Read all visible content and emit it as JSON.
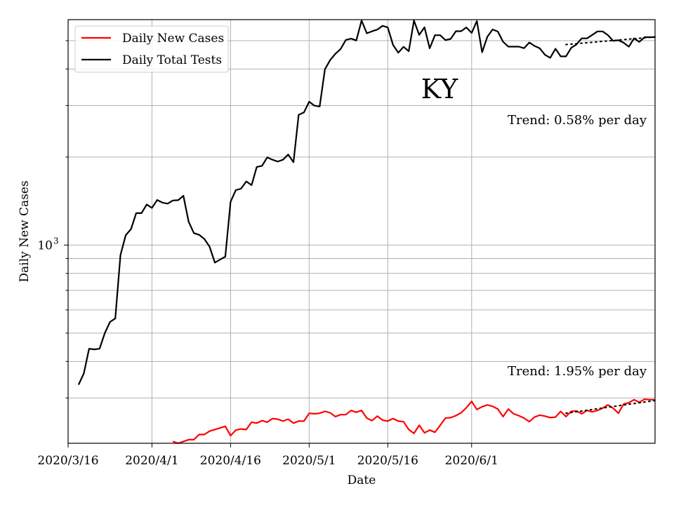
{
  "chart_data": {
    "type": "line",
    "title": "",
    "xlabel": "Date",
    "ylabel": "Daily New Cases",
    "annotation_state": "KY",
    "x_ticks": [
      "2020/3/16",
      "2020/4/1",
      "2020/4/16",
      "2020/5/1",
      "2020/5/16",
      "2020/6/1"
    ],
    "y_tick_label": "10",
    "y_tick_exponent": "3",
    "y_scale": "log",
    "ylim": [
      210,
      5900
    ],
    "xlim": [
      "2020-03-16",
      "2020-07-06"
    ],
    "grid": true,
    "legend_position": "upper-left",
    "series": [
      {
        "name": "Daily New Cases",
        "color": "#ff0000",
        "trend_label": "Trend: 1.95% per day",
        "points": [
          [
            "2020-04-05",
            213
          ],
          [
            "2020-04-06",
            210
          ],
          [
            "2020-04-07",
            213
          ],
          [
            "2020-04-08",
            216
          ],
          [
            "2020-04-09",
            216
          ],
          [
            "2020-04-10",
            225
          ],
          [
            "2020-04-11",
            225
          ],
          [
            "2020-04-12",
            231
          ],
          [
            "2020-04-13",
            234
          ],
          [
            "2020-04-14",
            237
          ],
          [
            "2020-04-15",
            240
          ],
          [
            "2020-04-16",
            223
          ],
          [
            "2020-04-17",
            233
          ],
          [
            "2020-04-18",
            235
          ],
          [
            "2020-04-19",
            234
          ],
          [
            "2020-04-20",
            248
          ],
          [
            "2020-04-21",
            246
          ],
          [
            "2020-04-22",
            251
          ],
          [
            "2020-04-23",
            248
          ],
          [
            "2020-04-24",
            255
          ],
          [
            "2020-04-25",
            254
          ],
          [
            "2020-04-26",
            250
          ],
          [
            "2020-04-27",
            254
          ],
          [
            "2020-04-28",
            246
          ],
          [
            "2020-04-29",
            250
          ],
          [
            "2020-04-30",
            250
          ],
          [
            "2020-05-01",
            266
          ],
          [
            "2020-05-02",
            265
          ],
          [
            "2020-05-03",
            266
          ],
          [
            "2020-05-04",
            270
          ],
          [
            "2020-05-05",
            267
          ],
          [
            "2020-05-06",
            259
          ],
          [
            "2020-05-07",
            263
          ],
          [
            "2020-05-08",
            263
          ],
          [
            "2020-05-09",
            272
          ],
          [
            "2020-05-10",
            268
          ],
          [
            "2020-05-11",
            272
          ],
          [
            "2020-05-12",
            256
          ],
          [
            "2020-05-13",
            251
          ],
          [
            "2020-05-14",
            260
          ],
          [
            "2020-05-15",
            252
          ],
          [
            "2020-05-16",
            250
          ],
          [
            "2020-05-17",
            255
          ],
          [
            "2020-05-18",
            250
          ],
          [
            "2020-05-19",
            249
          ],
          [
            "2020-05-20",
            234
          ],
          [
            "2020-05-21",
            227
          ],
          [
            "2020-05-22",
            242
          ],
          [
            "2020-05-23",
            228
          ],
          [
            "2020-05-24",
            233
          ],
          [
            "2020-05-25",
            229
          ],
          [
            "2020-05-26",
            242
          ],
          [
            "2020-05-27",
            256
          ],
          [
            "2020-05-28",
            257
          ],
          [
            "2020-05-29",
            261
          ],
          [
            "2020-05-30",
            267
          ],
          [
            "2020-05-31",
            278
          ],
          [
            "2020-06-01",
            292
          ],
          [
            "2020-06-02",
            274
          ],
          [
            "2020-06-03",
            280
          ],
          [
            "2020-06-04",
            284
          ],
          [
            "2020-06-05",
            281
          ],
          [
            "2020-06-06",
            275
          ],
          [
            "2020-06-07",
            259
          ],
          [
            "2020-06-08",
            275
          ],
          [
            "2020-06-09",
            265
          ],
          [
            "2020-06-10",
            261
          ],
          [
            "2020-06-11",
            256
          ],
          [
            "2020-06-12",
            249
          ],
          [
            "2020-06-13",
            258
          ],
          [
            "2020-06-14",
            262
          ],
          [
            "2020-06-15",
            260
          ],
          [
            "2020-06-16",
            257
          ],
          [
            "2020-06-17",
            258
          ],
          [
            "2020-06-18",
            270
          ],
          [
            "2020-06-19",
            259
          ],
          [
            "2020-06-20",
            270
          ],
          [
            "2020-06-21",
            271
          ],
          [
            "2020-06-22",
            265
          ],
          [
            "2020-06-23",
            272
          ],
          [
            "2020-06-24",
            269
          ],
          [
            "2020-06-25",
            272
          ],
          [
            "2020-06-26",
            277
          ],
          [
            "2020-06-27",
            284
          ],
          [
            "2020-06-28",
            277
          ],
          [
            "2020-06-29",
            266
          ],
          [
            "2020-06-30",
            286
          ],
          [
            "2020-07-01",
            289
          ],
          [
            "2020-07-02",
            296
          ],
          [
            "2020-07-03",
            290
          ],
          [
            "2020-07-04",
            297
          ],
          [
            "2020-07-05",
            296
          ],
          [
            "2020-07-06",
            296
          ]
        ],
        "trend_line": [
          [
            "2020-06-19",
            266
          ],
          [
            "2020-07-06",
            294
          ]
        ]
      },
      {
        "name": "Daily Total Tests",
        "color": "#000000",
        "trend_label": "Trend: 0.58% per day",
        "points": [
          [
            "2020-03-18",
            333
          ],
          [
            "2020-03-19",
            364
          ],
          [
            "2020-03-20",
            442
          ],
          [
            "2020-03-21",
            440
          ],
          [
            "2020-03-22",
            442
          ],
          [
            "2020-03-23",
            500
          ],
          [
            "2020-03-24",
            546
          ],
          [
            "2020-03-25",
            561
          ],
          [
            "2020-03-26",
            925
          ],
          [
            "2020-03-27",
            1081
          ],
          [
            "2020-03-28",
            1134
          ],
          [
            "2020-03-29",
            1286
          ],
          [
            "2020-03-30",
            1286
          ],
          [
            "2020-03-31",
            1376
          ],
          [
            "2020-04-01",
            1340
          ],
          [
            "2020-04-02",
            1426
          ],
          [
            "2020-04-03",
            1397
          ],
          [
            "2020-04-04",
            1386
          ],
          [
            "2020-04-05",
            1421
          ],
          [
            "2020-04-06",
            1424
          ],
          [
            "2020-04-07",
            1474
          ],
          [
            "2020-04-08",
            1202
          ],
          [
            "2020-04-09",
            1099
          ],
          [
            "2020-04-10",
            1084
          ],
          [
            "2020-04-11",
            1049
          ],
          [
            "2020-04-12",
            988
          ],
          [
            "2020-04-13",
            871
          ],
          [
            "2020-04-14",
            892
          ],
          [
            "2020-04-15",
            913
          ],
          [
            "2020-04-16",
            1406
          ],
          [
            "2020-04-17",
            1542
          ],
          [
            "2020-04-18",
            1559
          ],
          [
            "2020-04-19",
            1651
          ],
          [
            "2020-04-20",
            1603
          ],
          [
            "2020-04-21",
            1849
          ],
          [
            "2020-04-22",
            1866
          ],
          [
            "2020-04-23",
            1994
          ],
          [
            "2020-04-24",
            1958
          ],
          [
            "2020-04-25",
            1929
          ],
          [
            "2020-04-26",
            1958
          ],
          [
            "2020-04-27",
            2040
          ],
          [
            "2020-04-28",
            1919
          ],
          [
            "2020-04-29",
            2789
          ],
          [
            "2020-04-30",
            2841
          ],
          [
            "2020-05-01",
            3092
          ],
          [
            "2020-05-02",
            2998
          ],
          [
            "2020-05-03",
            2976
          ],
          [
            "2020-05-04",
            3990
          ],
          [
            "2020-05-05",
            4291
          ],
          [
            "2020-05-06",
            4508
          ],
          [
            "2020-05-07",
            4680
          ],
          [
            "2020-05-08",
            5031
          ],
          [
            "2020-05-09",
            5080
          ],
          [
            "2020-05-10",
            5007
          ],
          [
            "2020-05-11",
            5859
          ],
          [
            "2020-05-12",
            5299
          ],
          [
            "2020-05-13",
            5383
          ],
          [
            "2020-05-14",
            5455
          ],
          [
            "2020-05-15",
            5621
          ],
          [
            "2020-05-16",
            5550
          ],
          [
            "2020-05-17",
            4835
          ],
          [
            "2020-05-18",
            4546
          ],
          [
            "2020-05-19",
            4764
          ],
          [
            "2020-05-20",
            4601
          ],
          [
            "2020-05-21",
            5859
          ],
          [
            "2020-05-22",
            5231
          ],
          [
            "2020-05-23",
            5555
          ],
          [
            "2020-05-24",
            4707
          ],
          [
            "2020-05-25",
            5218
          ],
          [
            "2020-05-26",
            5218
          ],
          [
            "2020-05-27",
            5021
          ],
          [
            "2020-05-28",
            5070
          ],
          [
            "2020-05-29",
            5385
          ],
          [
            "2020-05-30",
            5385
          ],
          [
            "2020-05-31",
            5548
          ],
          [
            "2020-06-01",
            5313
          ],
          [
            "2020-06-02",
            5839
          ],
          [
            "2020-06-03",
            4563
          ],
          [
            "2020-06-04",
            5154
          ],
          [
            "2020-06-05",
            5461
          ],
          [
            "2020-06-06",
            5371
          ],
          [
            "2020-06-07",
            4958
          ],
          [
            "2020-06-08",
            4769
          ],
          [
            "2020-06-09",
            4769
          ],
          [
            "2020-06-10",
            4769
          ],
          [
            "2020-06-11",
            4712
          ],
          [
            "2020-06-12",
            4927
          ],
          [
            "2020-06-13",
            4797
          ],
          [
            "2020-06-14",
            4706
          ],
          [
            "2020-06-15",
            4472
          ],
          [
            "2020-06-16",
            4369
          ],
          [
            "2020-06-17",
            4691
          ],
          [
            "2020-06-18",
            4418
          ],
          [
            "2020-06-19",
            4418
          ],
          [
            "2020-06-20",
            4726
          ],
          [
            "2020-06-21",
            4852
          ],
          [
            "2020-06-22",
            5091
          ],
          [
            "2020-06-23",
            5091
          ],
          [
            "2020-06-24",
            5229
          ],
          [
            "2020-06-25",
            5376
          ],
          [
            "2020-06-26",
            5376
          ],
          [
            "2020-06-27",
            5226
          ],
          [
            "2020-06-28",
            4994
          ],
          [
            "2020-06-29",
            5017
          ],
          [
            "2020-06-30",
            4920
          ],
          [
            "2020-07-01",
            4766
          ],
          [
            "2020-07-02",
            5090
          ],
          [
            "2020-07-03",
            4952
          ],
          [
            "2020-07-04",
            5140
          ],
          [
            "2020-07-05",
            5140
          ],
          [
            "2020-07-06",
            5140
          ]
        ],
        "trend_line": [
          [
            "2020-06-19",
            4850
          ],
          [
            "2020-07-06",
            5150
          ]
        ]
      }
    ]
  }
}
